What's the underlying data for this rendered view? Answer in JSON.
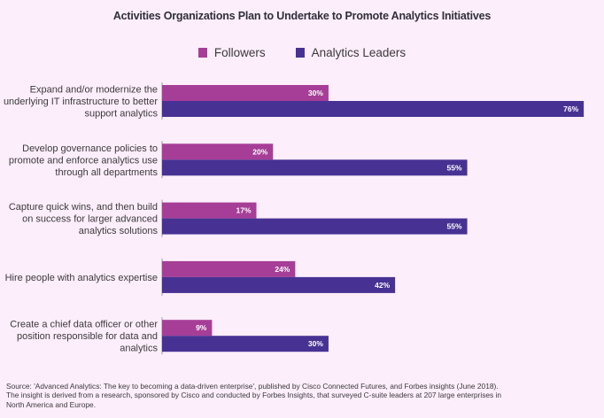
{
  "chart_data": {
    "type": "bar",
    "orientation": "horizontal",
    "title": "Activities Organizations Plan to Undertake to Promote Analytics Initiatives",
    "xlabel": "",
    "ylabel": "",
    "xlim": [
      0,
      80
    ],
    "grid": false,
    "legend_position": "top-center",
    "categories": [
      [
        "Expand and/or modernize the",
        "underlying IT infrastructure to better",
        "support analytics"
      ],
      [
        "Develop governance policies to",
        "promote and enforce analytics use",
        "through all departments"
      ],
      [
        "Capture quick wins, and then build",
        "on success for larger advanced",
        "analytics solutions"
      ],
      [
        "Hire people with analytics expertise"
      ],
      [
        "Create a chief data officer or other",
        "position responsible for data and",
        "analytics"
      ]
    ],
    "series": [
      {
        "name": "Followers",
        "color": "#a63e97",
        "values": [
          30,
          20,
          17,
          24,
          9
        ],
        "labels": [
          "30%",
          "20%",
          "17%",
          "24%",
          "9%"
        ]
      },
      {
        "name": "Analytics Leaders",
        "color": "#473293",
        "values": [
          76,
          55,
          55,
          42,
          30
        ],
        "labels": [
          "76%",
          "55%",
          "55%",
          "42%",
          "30%"
        ]
      }
    ]
  },
  "footer": {
    "lines": [
      "Source: 'Advanced Analytics: The key to becoming a data-driven enterprise', published by Cisco Connected Futures, and Forbes insights (June 2018).",
      "The insight is derived from a research, sponsored by Cisco and conducted by Forbes Insights, that surveyed C-suite leaders at 207 large enterprises in",
      "North America and Europe."
    ]
  }
}
